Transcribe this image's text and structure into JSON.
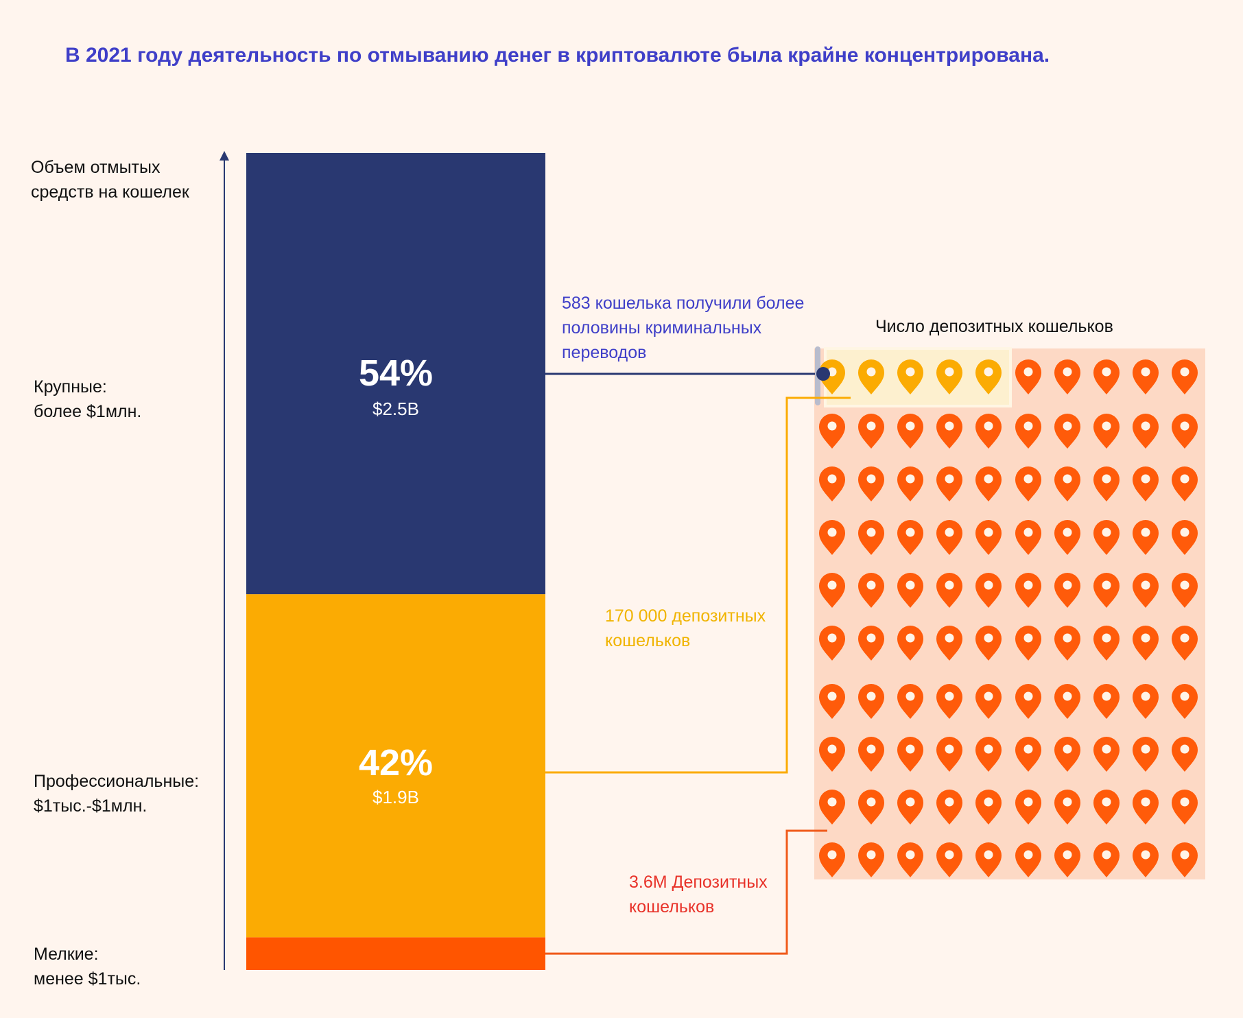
{
  "title": "В 2021 году деятельность по отмыванию денег в криптовалюте была крайне концентрирована.",
  "y_axis": {
    "label_line1": "Объем отмытых",
    "label_line2": "средств на кошелек"
  },
  "tiers": {
    "large": {
      "line1": "Крупные:",
      "line2": "более $1млн."
    },
    "professional": {
      "line1": "Профессиональные:",
      "line2": "$1тыс.-$1млн."
    },
    "small": {
      "line1": "Мелкие:",
      "line2": "менее $1тыс."
    }
  },
  "annotations": {
    "large": {
      "line1": "583 кошелька получили более",
      "line2": "половины криминальных",
      "line3": "переводов",
      "color": "#3f3fc8"
    },
    "professional": {
      "line1": "170 000 депозитных",
      "line2": "кошельков",
      "color": "#f0b400"
    },
    "small": {
      "line1": "3.6M Депозитных",
      "line2": "кошельков",
      "color": "#e8332a"
    }
  },
  "grid": {
    "title": "Число депозитных кошельков",
    "rows": 10,
    "cols": 10,
    "highlighted_icons": 5,
    "icon_name": "location-pin-icon",
    "highlight_color": "#fbab03",
    "icon_color": "#ff5b0a",
    "background_color": "#fdd9c5",
    "highlight_background": "#fdf0cf"
  },
  "chart_data": {
    "type": "bar",
    "stacked": true,
    "categories": [
      "Мелкие",
      "Профессиональные",
      "Крупные"
    ],
    "series": [
      {
        "values": [
          4,
          42,
          54
        ],
        "amounts": [
          "",
          "$1.9B",
          "$2.5B"
        ],
        "labels": [
          "",
          "42%",
          "54%"
        ]
      }
    ],
    "colors": [
      "#ff5500",
      "#fbab03",
      "#293871"
    ],
    "ylim": [
      0,
      100
    ]
  }
}
